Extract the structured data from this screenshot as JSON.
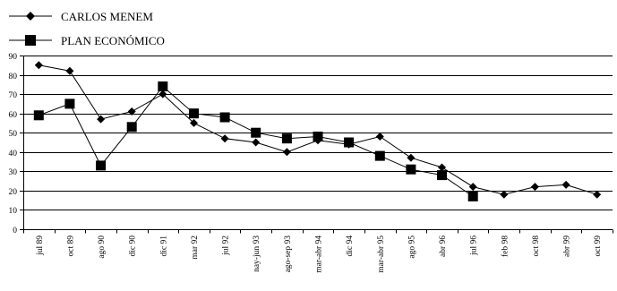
{
  "chart_data": {
    "type": "line",
    "categories": [
      "jul 89",
      "oct 89",
      "ago 90",
      "dic 90",
      "dic 91",
      "mar 92",
      "jul 92",
      "nay-jun 93",
      "ago-sep 93",
      "mar-abr 94",
      "dic 94",
      "mar-abr 95",
      "ago 95",
      "abr 96",
      "jul 96",
      "feb 98",
      "oct 98",
      "abr 99",
      "oct 99"
    ],
    "series": [
      {
        "name": "CARLOS MENEM",
        "marker": "diamond",
        "color": "#000000",
        "values": [
          85,
          82,
          57,
          61,
          70,
          55,
          47,
          45,
          40,
          46,
          44,
          48,
          37,
          32,
          22,
          18,
          22,
          23,
          18
        ]
      },
      {
        "name": "PLAN ECONÓMICO",
        "marker": "square",
        "color": "#000000",
        "values": [
          59,
          65,
          33,
          53,
          74,
          60,
          58,
          50,
          47,
          48,
          45,
          38,
          31,
          28,
          17,
          null,
          null,
          null,
          null
        ]
      }
    ],
    "yticks": [
      "0",
      "10",
      "20",
      "30",
      "40",
      "50",
      "60",
      "70",
      "80",
      "90"
    ],
    "ylim": [
      0,
      90
    ],
    "grid": true,
    "legend_position": "top-left"
  }
}
